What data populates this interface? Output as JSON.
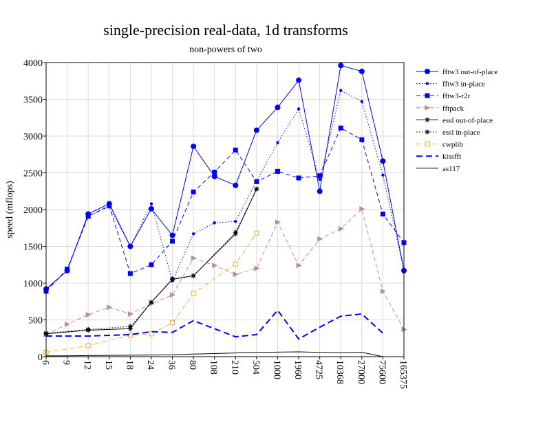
{
  "chart_data": {
    "type": "line",
    "title": "single-precision real-data, 1d transforms",
    "subtitle": "non-powers of two",
    "xlabel": "",
    "ylabel": "speed (mflops)",
    "ylim": [
      0,
      4000
    ],
    "yticks": [
      0,
      500,
      1000,
      1500,
      2000,
      2500,
      3000,
      3500,
      4000
    ],
    "grid": true,
    "legend_position": "right",
    "categories": [
      "6",
      "9",
      "12",
      "15",
      "18",
      "24",
      "36",
      "80",
      "108",
      "210",
      "504",
      "1000",
      "1960",
      "4725",
      "10368",
      "27000",
      "75600",
      "165375"
    ],
    "series": [
      {
        "name": "fftw3 out-of-place",
        "color": "#0000ff",
        "dash": "",
        "marker": "circle",
        "width": 1,
        "values": [
          920,
          1170,
          1940,
          2080,
          1500,
          2010,
          1650,
          2860,
          2450,
          2330,
          3080,
          3390,
          3760,
          2250,
          3960,
          3880,
          2660,
          1170
        ]
      },
      {
        "name": "fftw3 in-place",
        "color": "#0000ff",
        "dash": "1.5,2.5",
        "marker": "smalldot",
        "width": 1,
        "values": [
          910,
          1170,
          1910,
          2040,
          1500,
          2080,
          1030,
          1670,
          1820,
          1840,
          2390,
          2910,
          3370,
          2410,
          3620,
          3470,
          2470,
          1170
        ]
      },
      {
        "name": "fftw3-r2r",
        "color": "#0000ff",
        "dash": "6,4",
        "marker": "square",
        "width": 1,
        "values": [
          890,
          1190,
          1910,
          2050,
          1130,
          1250,
          1570,
          2240,
          2510,
          2810,
          2380,
          2520,
          2430,
          2460,
          3110,
          2950,
          1940,
          1550
        ]
      },
      {
        "name": "fftpack",
        "color": "#bc8f8f",
        "dash": "6,4",
        "marker": "triangle",
        "width": 1,
        "values": [
          300,
          440,
          570,
          670,
          580,
          720,
          840,
          1340,
          1240,
          1120,
          1200,
          1830,
          1240,
          1600,
          1740,
          2010,
          890,
          370
        ]
      },
      {
        "name": "essl out-of-place",
        "color": "#000000",
        "dash": "",
        "marker": "star",
        "width": 1,
        "values": [
          310,
          null,
          360,
          null,
          380,
          740,
          1050,
          1100,
          null,
          1670,
          2280,
          null,
          null,
          null,
          null,
          null,
          null,
          null
        ]
      },
      {
        "name": "essl in-place",
        "color": "#000000",
        "dash": "1.5,2.5",
        "marker": "star",
        "width": 1,
        "values": [
          320,
          null,
          370,
          null,
          410,
          740,
          1060,
          1100,
          null,
          1690,
          2280,
          null,
          null,
          null,
          null,
          null,
          null,
          null
        ]
      },
      {
        "name": "cwplib",
        "color": "#ffa500",
        "dash": "5,3,1,3",
        "marker": "opensquare",
        "width": 1,
        "values": [
          60,
          null,
          150,
          null,
          290,
          310,
          460,
          860,
          null,
          1260,
          1680,
          null,
          null,
          null,
          null,
          null,
          null,
          null
        ]
      },
      {
        "name": "kissfft",
        "color": "#0000ff",
        "dash": "9,5",
        "marker": "none",
        "width": 2,
        "values": [
          280,
          280,
          280,
          290,
          300,
          340,
          330,
          490,
          380,
          270,
          300,
          630,
          240,
          400,
          550,
          580,
          320,
          null
        ]
      },
      {
        "name": "as117",
        "color": "#000000",
        "dash": "",
        "marker": "none",
        "width": 1,
        "values": [
          10,
          12,
          15,
          18,
          20,
          22,
          25,
          35,
          42,
          50,
          58,
          62,
          65,
          58,
          52,
          60,
          0,
          null
        ]
      }
    ]
  }
}
